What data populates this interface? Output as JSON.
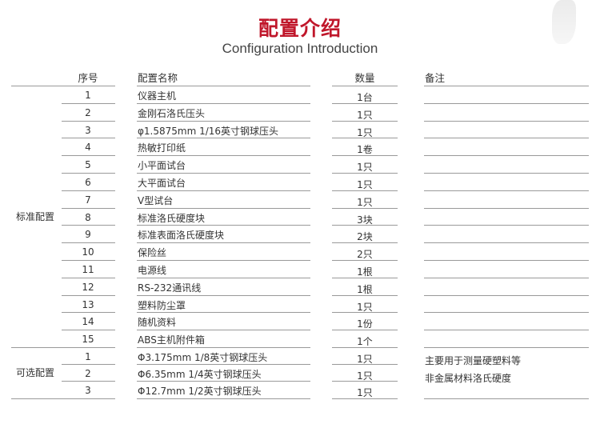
{
  "title": "配置介绍",
  "subtitle": "Configuration Introduction",
  "headers": {
    "seq": "序号",
    "name": "配置名称",
    "qty": "数量",
    "remark": "备注"
  },
  "groups": [
    {
      "label": "标准配置",
      "rows": [
        {
          "seq": "1",
          "name": "仪器主机",
          "qty": "1台"
        },
        {
          "seq": "2",
          "name": "金刚石洛氏压头",
          "qty": "1只"
        },
        {
          "seq": "3",
          "name": "φ1.5875mm   1/16英寸钢球压头",
          "qty": "1只"
        },
        {
          "seq": "4",
          "name": "热敏打印纸",
          "qty": "1卷"
        },
        {
          "seq": "5",
          "name": "小平面试台",
          "qty": "1只"
        },
        {
          "seq": "6",
          "name": "大平面试台",
          "qty": "1只"
        },
        {
          "seq": "7",
          "name": "V型试台",
          "qty": "1只"
        },
        {
          "seq": "8",
          "name": "标准洛氏硬度块",
          "qty": "3块"
        },
        {
          "seq": "9",
          "name": "标准表面洛氏硬度块",
          "qty": "2块"
        },
        {
          "seq": "10",
          "name": "保险丝",
          "qty": "2只"
        },
        {
          "seq": "11",
          "name": "电源线",
          "qty": "1根"
        },
        {
          "seq": "12",
          "name": "RS-232通讯线",
          "qty": "1根"
        },
        {
          "seq": "13",
          "name": "塑料防尘罩",
          "qty": "1只"
        },
        {
          "seq": "14",
          "name": "随机资料",
          "qty": "1份"
        },
        {
          "seq": "15",
          "name": "ABS主机附件箱",
          "qty": "1个"
        }
      ]
    },
    {
      "label": "可选配置",
      "rows": [
        {
          "seq": "1",
          "name": "Φ3.175mm   1/8英寸钢球压头",
          "qty": "1只"
        },
        {
          "seq": "2",
          "name": "Φ6.35mm    1/4英寸钢球压头",
          "qty": "1只"
        },
        {
          "seq": "3",
          "name": "Φ12.7mm    1/2英寸钢球压头",
          "qty": "1只"
        }
      ],
      "remark_lines": [
        "主要用于测量硬塑料等",
        "非金属材料洛氏硬度"
      ]
    }
  ],
  "colors": {
    "title": "#c0172b",
    "rule": "#9a9a9a",
    "text": "#333333"
  }
}
